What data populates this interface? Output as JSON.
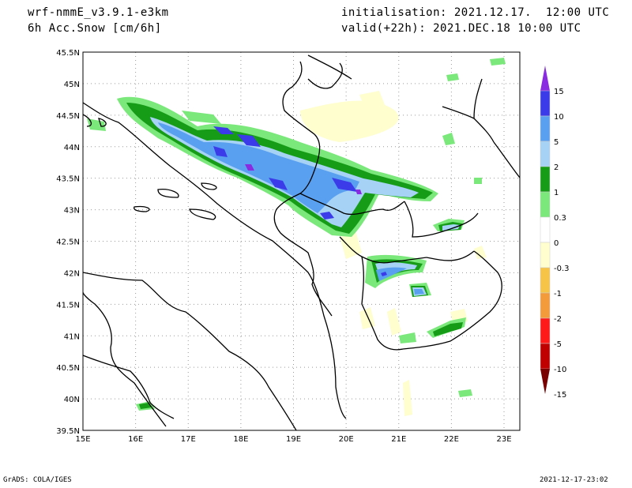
{
  "header": {
    "model": "wrf-nmmE_v3.9.1-e3km",
    "field": "6h Acc.Snow [cm/6h]",
    "init": "initialisation: 2021.12.17.  12:00 UTC",
    "valid": "valid(+22h): 2021.DEC.18 10:00 UTC"
  },
  "footer": {
    "left": "GrADS: COLA/IGES",
    "right": "2021-12-17-23:02"
  },
  "map": {
    "lon_range": [
      15,
      23.3
    ],
    "lat_range": [
      39.5,
      45.5
    ],
    "lon_labels": [
      "15E",
      "16E",
      "17E",
      "18E",
      "19E",
      "20E",
      "21E",
      "22E",
      "23E"
    ],
    "lat_labels": [
      "39.5N",
      "40N",
      "40.5N",
      "41N",
      "41.5N",
      "42N",
      "42.5N",
      "43N",
      "43.5N",
      "44N",
      "44.5N",
      "45N",
      "45.5N"
    ]
  },
  "legend": {
    "labels": [
      "15",
      "10",
      "5",
      "2",
      "1",
      "0.3",
      "0",
      "-0.3",
      "-1",
      "-2",
      "-5",
      "-10",
      "-15"
    ],
    "colors": [
      "#8a2be2",
      "#3b3bea",
      "#5aa0f0",
      "#a6d2f5",
      "#179c17",
      "#7be87b",
      "#ffffff",
      "#fefecf",
      "#f6c447",
      "#f39a3a",
      "#ff1a1a",
      "#c00000",
      "#7a0000"
    ]
  }
}
